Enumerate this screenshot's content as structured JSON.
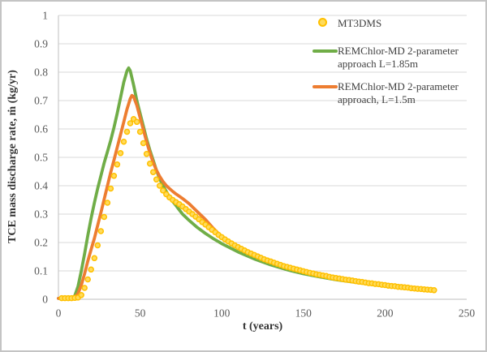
{
  "colors": {
    "green": "#70AD47",
    "orange": "#ED7D31",
    "gold_stroke": "#FFC000",
    "gold_fill": "#FFDB5C",
    "gridline": "#D9D9D9",
    "axis_line": "#BFBFBF",
    "tick_text": "#595959",
    "title_text": "#333333",
    "legend_text": "#404040",
    "frame_border": "#C4C4C4"
  },
  "legend": {
    "items": [
      {
        "label": "MT3DMS",
        "marker": "circle",
        "color": "#FFC000"
      },
      {
        "label_line1": "REMChlor-MD 2-parameter",
        "label_line2": "approach L=1.85m",
        "marker": "line",
        "color": "#70AD47"
      },
      {
        "label_line1": "REMChlor-MD 2-parameter",
        "label_line2": "approach, L=1.5m",
        "marker": "line",
        "color": "#ED7D31"
      }
    ]
  },
  "chart_data": {
    "type": "line",
    "title": "",
    "xlabel": "t (years)",
    "ylabel": "TCE mass discharge rate, ṁ (kg/yr)",
    "xlim": [
      0,
      250
    ],
    "ylim": [
      0,
      1
    ],
    "grid": "horizontal",
    "legend_position": "inside-top-right",
    "x_ticks": [
      [
        0,
        "0"
      ],
      [
        50,
        "50"
      ],
      [
        100,
        "100"
      ],
      [
        150,
        "150"
      ],
      [
        200,
        "200"
      ],
      [
        250,
        "250"
      ]
    ],
    "y_ticks": [
      [
        0,
        "0"
      ],
      [
        0.1,
        "0.1"
      ],
      [
        0.2,
        "0.2"
      ],
      [
        0.3,
        "0.3"
      ],
      [
        0.4,
        "0.4"
      ],
      [
        0.5,
        "0.5"
      ],
      [
        0.6,
        "0.6"
      ],
      [
        0.7,
        "0.7"
      ],
      [
        0.8,
        "0.8"
      ],
      [
        0.9,
        "0.9"
      ],
      [
        1,
        "1"
      ]
    ],
    "series": [
      {
        "name": "REMChlor-MD 2-parameter approach L=1.85m",
        "type": "line",
        "color": "#70AD47",
        "points": [
          [
            0,
            0.003
          ],
          [
            4,
            0.003
          ],
          [
            8,
            0.004
          ],
          [
            10,
            0.012
          ],
          [
            12,
            0.045
          ],
          [
            14,
            0.1
          ],
          [
            16,
            0.16
          ],
          [
            18,
            0.225
          ],
          [
            20,
            0.285
          ],
          [
            22,
            0.34
          ],
          [
            24,
            0.39
          ],
          [
            26,
            0.435
          ],
          [
            28,
            0.48
          ],
          [
            30,
            0.52
          ],
          [
            32,
            0.56
          ],
          [
            34,
            0.605
          ],
          [
            36,
            0.655
          ],
          [
            38,
            0.71
          ],
          [
            40,
            0.765
          ],
          [
            42,
            0.805
          ],
          [
            43,
            0.815
          ],
          [
            44,
            0.805
          ],
          [
            46,
            0.755
          ],
          [
            48,
            0.7
          ],
          [
            50,
            0.655
          ],
          [
            52,
            0.61
          ],
          [
            54,
            0.565
          ],
          [
            56,
            0.525
          ],
          [
            58,
            0.49
          ],
          [
            60,
            0.455
          ],
          [
            62,
            0.425
          ],
          [
            64,
            0.4
          ],
          [
            66,
            0.38
          ],
          [
            68,
            0.36
          ],
          [
            70,
            0.345
          ],
          [
            72,
            0.33
          ],
          [
            74,
            0.315
          ],
          [
            76,
            0.3
          ],
          [
            80,
            0.278
          ],
          [
            85,
            0.253
          ],
          [
            90,
            0.232
          ],
          [
            95,
            0.213
          ],
          [
            100,
            0.196
          ],
          [
            110,
            0.167
          ],
          [
            120,
            0.142
          ],
          [
            130,
            0.121
          ],
          [
            140,
            0.104
          ],
          [
            150,
            0.09
          ],
          [
            160,
            0.079
          ],
          [
            170,
            0.069
          ],
          [
            180,
            0.061
          ],
          [
            190,
            0.054
          ],
          [
            200,
            0.048
          ],
          [
            210,
            0.042
          ],
          [
            220,
            0.036
          ],
          [
            230,
            0.031
          ]
        ]
      },
      {
        "name": "REMChlor-MD 2-parameter approach, L=1.5m",
        "type": "line",
        "color": "#ED7D31",
        "points": [
          [
            0,
            0.003
          ],
          [
            4,
            0.003
          ],
          [
            8,
            0.003
          ],
          [
            10,
            0.007
          ],
          [
            12,
            0.02
          ],
          [
            14,
            0.05
          ],
          [
            16,
            0.09
          ],
          [
            18,
            0.135
          ],
          [
            20,
            0.175
          ],
          [
            22,
            0.215
          ],
          [
            24,
            0.26
          ],
          [
            26,
            0.305
          ],
          [
            28,
            0.352
          ],
          [
            30,
            0.4
          ],
          [
            32,
            0.447
          ],
          [
            34,
            0.49
          ],
          [
            36,
            0.535
          ],
          [
            38,
            0.58
          ],
          [
            40,
            0.625
          ],
          [
            42,
            0.67
          ],
          [
            44,
            0.707
          ],
          [
            45,
            0.718
          ],
          [
            46,
            0.714
          ],
          [
            48,
            0.683
          ],
          [
            50,
            0.64
          ],
          [
            52,
            0.598
          ],
          [
            54,
            0.555
          ],
          [
            56,
            0.516
          ],
          [
            58,
            0.482
          ],
          [
            60,
            0.455
          ],
          [
            62,
            0.433
          ],
          [
            64,
            0.415
          ],
          [
            66,
            0.401
          ],
          [
            68,
            0.39
          ],
          [
            70,
            0.38
          ],
          [
            72,
            0.371
          ],
          [
            74,
            0.363
          ],
          [
            76,
            0.355
          ],
          [
            80,
            0.337
          ],
          [
            85,
            0.309
          ],
          [
            90,
            0.281
          ],
          [
            95,
            0.249
          ],
          [
            100,
            0.22
          ],
          [
            110,
            0.184
          ],
          [
            120,
            0.154
          ],
          [
            130,
            0.131
          ],
          [
            140,
            0.113
          ],
          [
            150,
            0.098
          ],
          [
            160,
            0.086
          ],
          [
            170,
            0.075
          ],
          [
            180,
            0.066
          ],
          [
            190,
            0.058
          ],
          [
            200,
            0.052
          ],
          [
            210,
            0.046
          ],
          [
            220,
            0.04
          ],
          [
            230,
            0.034
          ]
        ]
      },
      {
        "name": "MT3DMS",
        "type": "scatter",
        "color": "#FFC000",
        "fill": "#FFDB5C",
        "marker": "circle",
        "t_start": 2,
        "t_step": 2,
        "values": [
          0.004,
          0.004,
          0.004,
          0.004,
          0.005,
          0.006,
          0.015,
          0.04,
          0.07,
          0.105,
          0.145,
          0.19,
          0.24,
          0.29,
          0.34,
          0.39,
          0.435,
          0.475,
          0.515,
          0.555,
          0.59,
          0.62,
          0.635,
          0.625,
          0.59,
          0.55,
          0.512,
          0.478,
          0.448,
          0.422,
          0.4,
          0.383,
          0.37,
          0.359,
          0.35,
          0.342,
          0.335,
          0.327,
          0.318,
          0.309,
          0.3,
          0.291,
          0.282,
          0.272,
          0.263,
          0.254,
          0.245,
          0.236,
          0.227,
          0.219,
          0.211,
          0.204,
          0.197,
          0.19,
          0.184,
          0.178,
          0.172,
          0.166,
          0.161,
          0.156,
          0.151,
          0.146,
          0.141,
          0.137,
          0.133,
          0.129,
          0.125,
          0.121,
          0.117,
          0.114,
          0.111,
          0.108,
          0.105,
          0.102,
          0.099,
          0.096,
          0.093,
          0.091,
          0.088,
          0.086,
          0.084,
          0.082,
          0.079,
          0.077,
          0.075,
          0.073,
          0.071,
          0.069,
          0.068,
          0.066,
          0.064,
          0.062,
          0.061,
          0.059,
          0.057,
          0.056,
          0.054,
          0.053,
          0.051,
          0.05,
          0.048,
          0.047,
          0.046,
          0.044,
          0.043,
          0.042,
          0.041,
          0.039,
          0.038,
          0.037,
          0.036,
          0.035,
          0.034,
          0.033,
          0.032
        ]
      }
    ]
  }
}
